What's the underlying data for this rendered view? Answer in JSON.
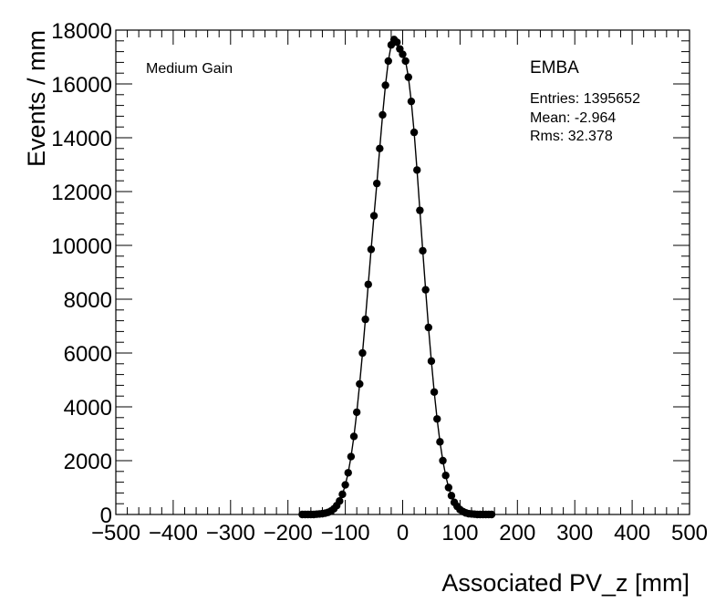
{
  "chart_data": {
    "type": "scatter",
    "xlabel": "Associated PV_z [mm]",
    "ylabel": "Events / mm",
    "xlim": [
      -500,
      500
    ],
    "ylim": [
      0,
      18000
    ],
    "x_ticks": [
      -500,
      -400,
      -300,
      -200,
      -100,
      0,
      100,
      200,
      300,
      400,
      500
    ],
    "y_ticks": [
      0,
      2000,
      4000,
      6000,
      8000,
      10000,
      12000,
      14000,
      16000,
      18000
    ],
    "x_tick_labels": [
      "−500",
      "−400",
      "−300",
      "−200",
      "−100",
      "0",
      "100",
      "200",
      "300",
      "400",
      "500"
    ],
    "y_tick_labels": [
      "0",
      "2000",
      "4000",
      "6000",
      "8000",
      "10000",
      "12000",
      "14000",
      "16000",
      "18000"
    ],
    "grid": false,
    "annotations": {
      "gain_label": "Medium Gain",
      "partition": "EMBA",
      "entries": "Entries: 1395652",
      "mean": "Mean: -2.964",
      "rms": "Rms: 32.378"
    },
    "series": [
      {
        "x": [
          -175,
          -170,
          -165,
          -160,
          -155,
          -150,
          -145,
          -140,
          -135,
          -130,
          -125,
          -120,
          -115,
          -110,
          -105,
          -100,
          -95,
          -90,
          -85,
          -80,
          -75,
          -70,
          -65,
          -60,
          -55,
          -50,
          -45,
          -40,
          -35,
          -30,
          -25,
          -20,
          -15,
          -10,
          -5,
          0,
          5,
          10,
          15,
          20,
          25,
          30,
          35,
          40,
          45,
          50,
          55,
          60,
          65,
          70,
          75,
          80,
          85,
          90,
          95,
          100,
          105,
          110,
          115,
          120,
          125,
          130,
          135,
          140,
          145,
          150,
          155
        ],
        "y": [
          0,
          0,
          0,
          0,
          0,
          10,
          20,
          30,
          50,
          80,
          130,
          210,
          330,
          500,
          750,
          1100,
          1550,
          2150,
          2900,
          3800,
          4850,
          6000,
          7250,
          8550,
          9850,
          11100,
          12300,
          13600,
          14850,
          15950,
          16850,
          17450,
          17650,
          17550,
          17300,
          17100,
          16850,
          16250,
          15350,
          14200,
          12800,
          11300,
          9800,
          8350,
          6950,
          5700,
          4550,
          3550,
          2700,
          2000,
          1450,
          1000,
          700,
          450,
          300,
          180,
          110,
          60,
          30,
          20,
          10,
          0,
          0,
          0,
          0,
          0,
          0
        ]
      }
    ]
  }
}
